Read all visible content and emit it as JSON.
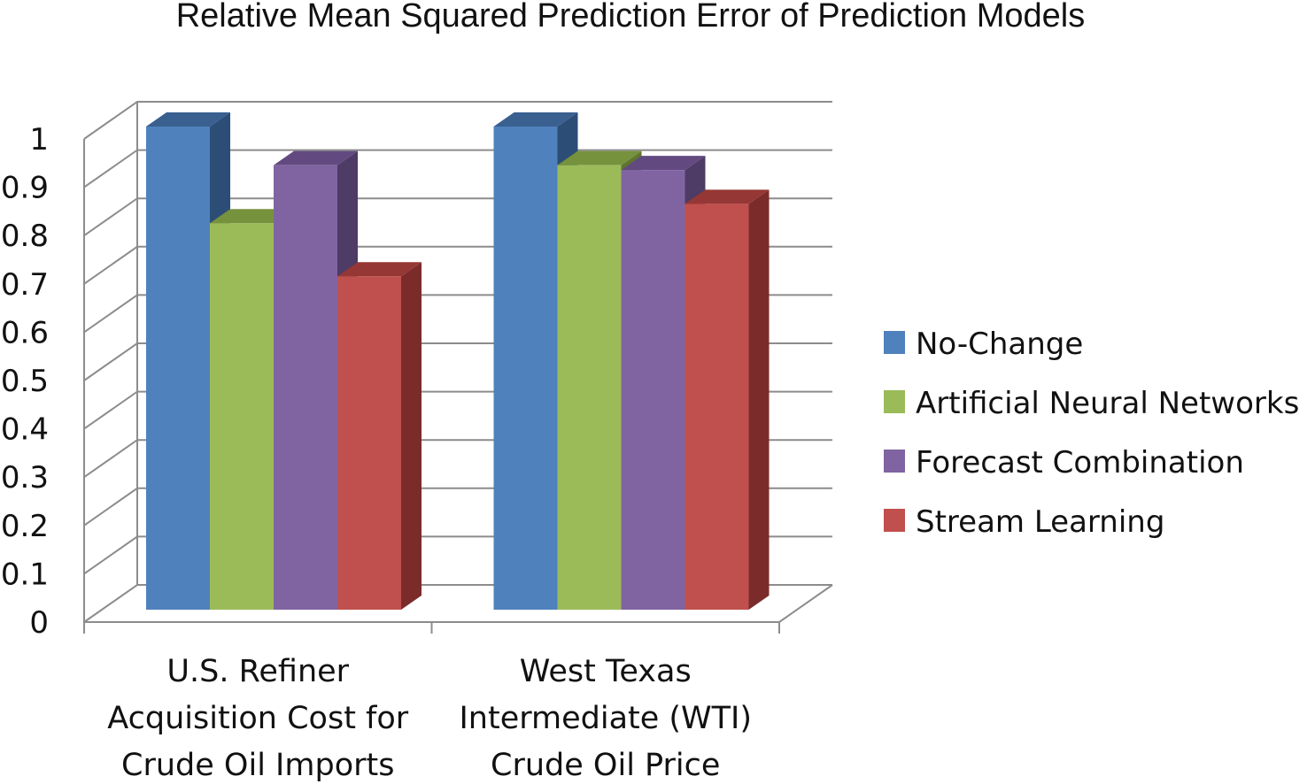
{
  "chart_data": {
    "type": "bar",
    "title": "Relative Mean Squared Prediction Error of Prediction Models",
    "xlabel": "",
    "ylabel": "",
    "ylim": [
      0,
      1
    ],
    "yticks": [
      "0",
      "0.1",
      "0.2",
      "0.3",
      "0.4",
      "0.5",
      "0.6",
      "0.7",
      "0.8",
      "0.9",
      "1"
    ],
    "categories": [
      [
        "U.S. Refiner",
        "Acquisition Cost for",
        "Crude Oil Imports"
      ],
      [
        "West Texas",
        "Intermediate (WTI)",
        "Crude Oil Price"
      ]
    ],
    "series": [
      {
        "name": "No-Change",
        "values": [
          1.0,
          1.0
        ],
        "color": "#4f81bd",
        "side": "#2c4d75",
        "top": "#3a6090"
      },
      {
        "name": "Artificial Neural Networks",
        "values": [
          0.8,
          0.92
        ],
        "color": "#9bbb59",
        "side": "#5f7530",
        "top": "#76923c"
      },
      {
        "name": "Forecast Combination",
        "values": [
          0.92,
          0.91
        ],
        "color": "#8064a2",
        "side": "#4e3b66",
        "top": "#624a80"
      },
      {
        "name": "Stream Learning",
        "values": [
          0.69,
          0.84
        ],
        "color": "#c0504d",
        "side": "#7b2c2a",
        "top": "#953734"
      }
    ],
    "grid": true,
    "legend_position": "right",
    "style": "3d-clustered-column"
  }
}
